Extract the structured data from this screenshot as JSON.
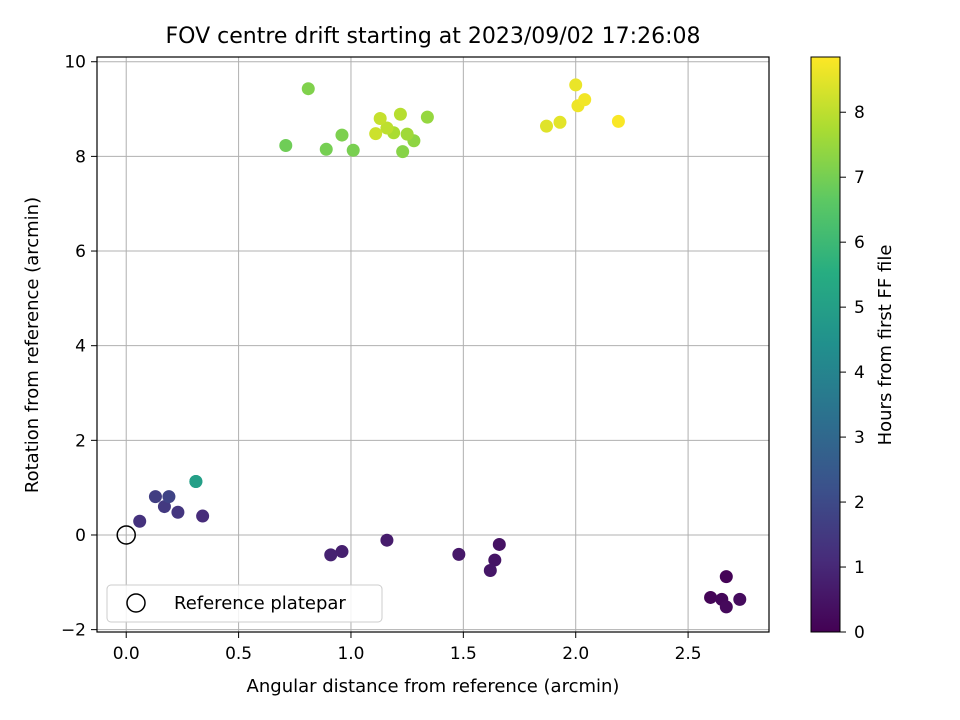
{
  "chart_data": {
    "type": "scatter",
    "title": "FOV centre drift starting at 2023/09/02 17:26:08",
    "xlabel": "Angular distance from reference (arcmin)",
    "ylabel": "Rotation from reference (arcmin)",
    "xlim": [
      -0.13,
      2.86
    ],
    "ylim": [
      -2.05,
      10.1
    ],
    "xticks": [
      0.0,
      0.5,
      1.0,
      1.5,
      2.0,
      2.5
    ],
    "xtick_labels": [
      "0.0",
      "0.5",
      "1.0",
      "1.5",
      "2.0",
      "2.5"
    ],
    "yticks": [
      -2,
      0,
      2,
      4,
      6,
      8,
      10
    ],
    "ytick_labels": [
      "−2",
      "0",
      "2",
      "4",
      "6",
      "8",
      "10"
    ],
    "grid": true,
    "legend": {
      "placement": "lower left",
      "entries": [
        "Reference platepar"
      ]
    },
    "reference_point": {
      "x": 0.0,
      "y": 0.0
    },
    "colorbar": {
      "label": "Hours from first FF file",
      "range": [
        0,
        8.85
      ],
      "ticks": [
        0,
        1,
        2,
        3,
        4,
        5,
        6,
        7,
        8
      ],
      "colormap": "viridis"
    },
    "points": [
      {
        "x": 2.67,
        "y": -0.88,
        "hours": 0.05
      },
      {
        "x": 2.6,
        "y": -1.32,
        "hours": 0.1
      },
      {
        "x": 2.65,
        "y": -1.36,
        "hours": 0.15
      },
      {
        "x": 2.67,
        "y": -1.52,
        "hours": 0.2
      },
      {
        "x": 2.73,
        "y": -1.36,
        "hours": 0.25
      },
      {
        "x": 1.66,
        "y": -0.2,
        "hours": 0.45
      },
      {
        "x": 1.64,
        "y": -0.53,
        "hours": 0.5
      },
      {
        "x": 1.62,
        "y": -0.75,
        "hours": 0.55
      },
      {
        "x": 1.48,
        "y": -0.41,
        "hours": 0.6
      },
      {
        "x": 1.16,
        "y": -0.11,
        "hours": 0.7
      },
      {
        "x": 0.96,
        "y": -0.35,
        "hours": 0.8
      },
      {
        "x": 0.91,
        "y": -0.42,
        "hours": 0.85
      },
      {
        "x": 0.34,
        "y": 0.4,
        "hours": 1.1
      },
      {
        "x": 0.06,
        "y": 0.29,
        "hours": 1.3
      },
      {
        "x": 0.23,
        "y": 0.48,
        "hours": 1.4
      },
      {
        "x": 0.17,
        "y": 0.6,
        "hours": 1.5
      },
      {
        "x": 0.13,
        "y": 0.81,
        "hours": 1.65
      },
      {
        "x": 0.19,
        "y": 0.81,
        "hours": 1.8
      },
      {
        "x": 0.31,
        "y": 1.13,
        "hours": 4.9
      },
      {
        "x": 0.31,
        "y": 1.13,
        "hours": 5.0
      },
      {
        "x": 0.71,
        "y": 8.23,
        "hours": 6.9
      },
      {
        "x": 0.89,
        "y": 8.15,
        "hours": 7.0
      },
      {
        "x": 1.01,
        "y": 8.13,
        "hours": 7.05
      },
      {
        "x": 0.96,
        "y": 8.45,
        "hours": 7.1
      },
      {
        "x": 0.81,
        "y": 9.43,
        "hours": 7.15
      },
      {
        "x": 1.23,
        "y": 8.1,
        "hours": 7.25
      },
      {
        "x": 1.28,
        "y": 8.33,
        "hours": 7.35
      },
      {
        "x": 1.34,
        "y": 8.83,
        "hours": 7.45
      },
      {
        "x": 1.25,
        "y": 8.47,
        "hours": 7.6
      },
      {
        "x": 1.19,
        "y": 8.5,
        "hours": 7.75
      },
      {
        "x": 1.22,
        "y": 8.89,
        "hours": 7.9
      },
      {
        "x": 1.16,
        "y": 8.6,
        "hours": 8.0
      },
      {
        "x": 1.13,
        "y": 8.8,
        "hours": 8.1
      },
      {
        "x": 1.11,
        "y": 8.48,
        "hours": 8.2
      },
      {
        "x": 1.87,
        "y": 8.64,
        "hours": 8.45
      },
      {
        "x": 1.93,
        "y": 8.72,
        "hours": 8.5
      },
      {
        "x": 2.0,
        "y": 9.51,
        "hours": 8.6
      },
      {
        "x": 2.01,
        "y": 9.07,
        "hours": 8.65
      },
      {
        "x": 2.04,
        "y": 9.2,
        "hours": 8.7
      },
      {
        "x": 2.19,
        "y": 8.74,
        "hours": 8.8
      }
    ]
  }
}
